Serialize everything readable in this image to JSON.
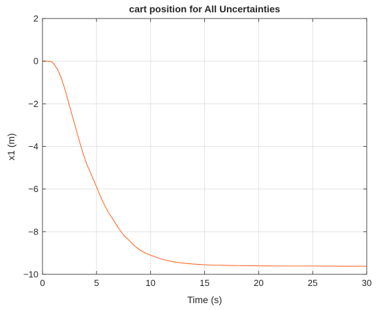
{
  "chart_data": {
    "type": "line",
    "title": "cart position for All Uncertainties",
    "xlabel": "Time (s)",
    "ylabel": "x1 (m)",
    "xlim": [
      0,
      30
    ],
    "ylim": [
      -10,
      2
    ],
    "xticks": [
      0,
      5,
      10,
      15,
      20,
      25,
      30
    ],
    "yticks": [
      2,
      0,
      -2,
      -4,
      -6,
      -8,
      -10
    ],
    "xtick_labels": [
      "0",
      "5",
      "10",
      "15",
      "20",
      "25",
      "30"
    ],
    "ytick_labels": [
      "2",
      "0",
      "−2",
      "−4",
      "−6",
      "−8",
      "−10"
    ],
    "grid": true,
    "series": [
      {
        "color": "#ff6929",
        "x": [
          0,
          0.5,
          0.8,
          1,
          1.5,
          2,
          2.5,
          3,
          3.5,
          4,
          4.5,
          5,
          5.5,
          6,
          6.5,
          7,
          7.5,
          8,
          8.5,
          9,
          9.5,
          10,
          11,
          12,
          13,
          14,
          15,
          16,
          17,
          18,
          20,
          22,
          25,
          28,
          30
        ],
        "y": [
          0,
          0,
          -0.03,
          -0.1,
          -0.5,
          -1.2,
          -2.1,
          -3.0,
          -3.9,
          -4.7,
          -5.3,
          -5.9,
          -6.5,
          -7.0,
          -7.4,
          -7.8,
          -8.15,
          -8.4,
          -8.65,
          -8.85,
          -9.0,
          -9.1,
          -9.28,
          -9.4,
          -9.47,
          -9.52,
          -9.55,
          -9.57,
          -9.58,
          -9.59,
          -9.6,
          -9.61,
          -9.61,
          -9.62,
          -9.62
        ]
      }
    ]
  }
}
